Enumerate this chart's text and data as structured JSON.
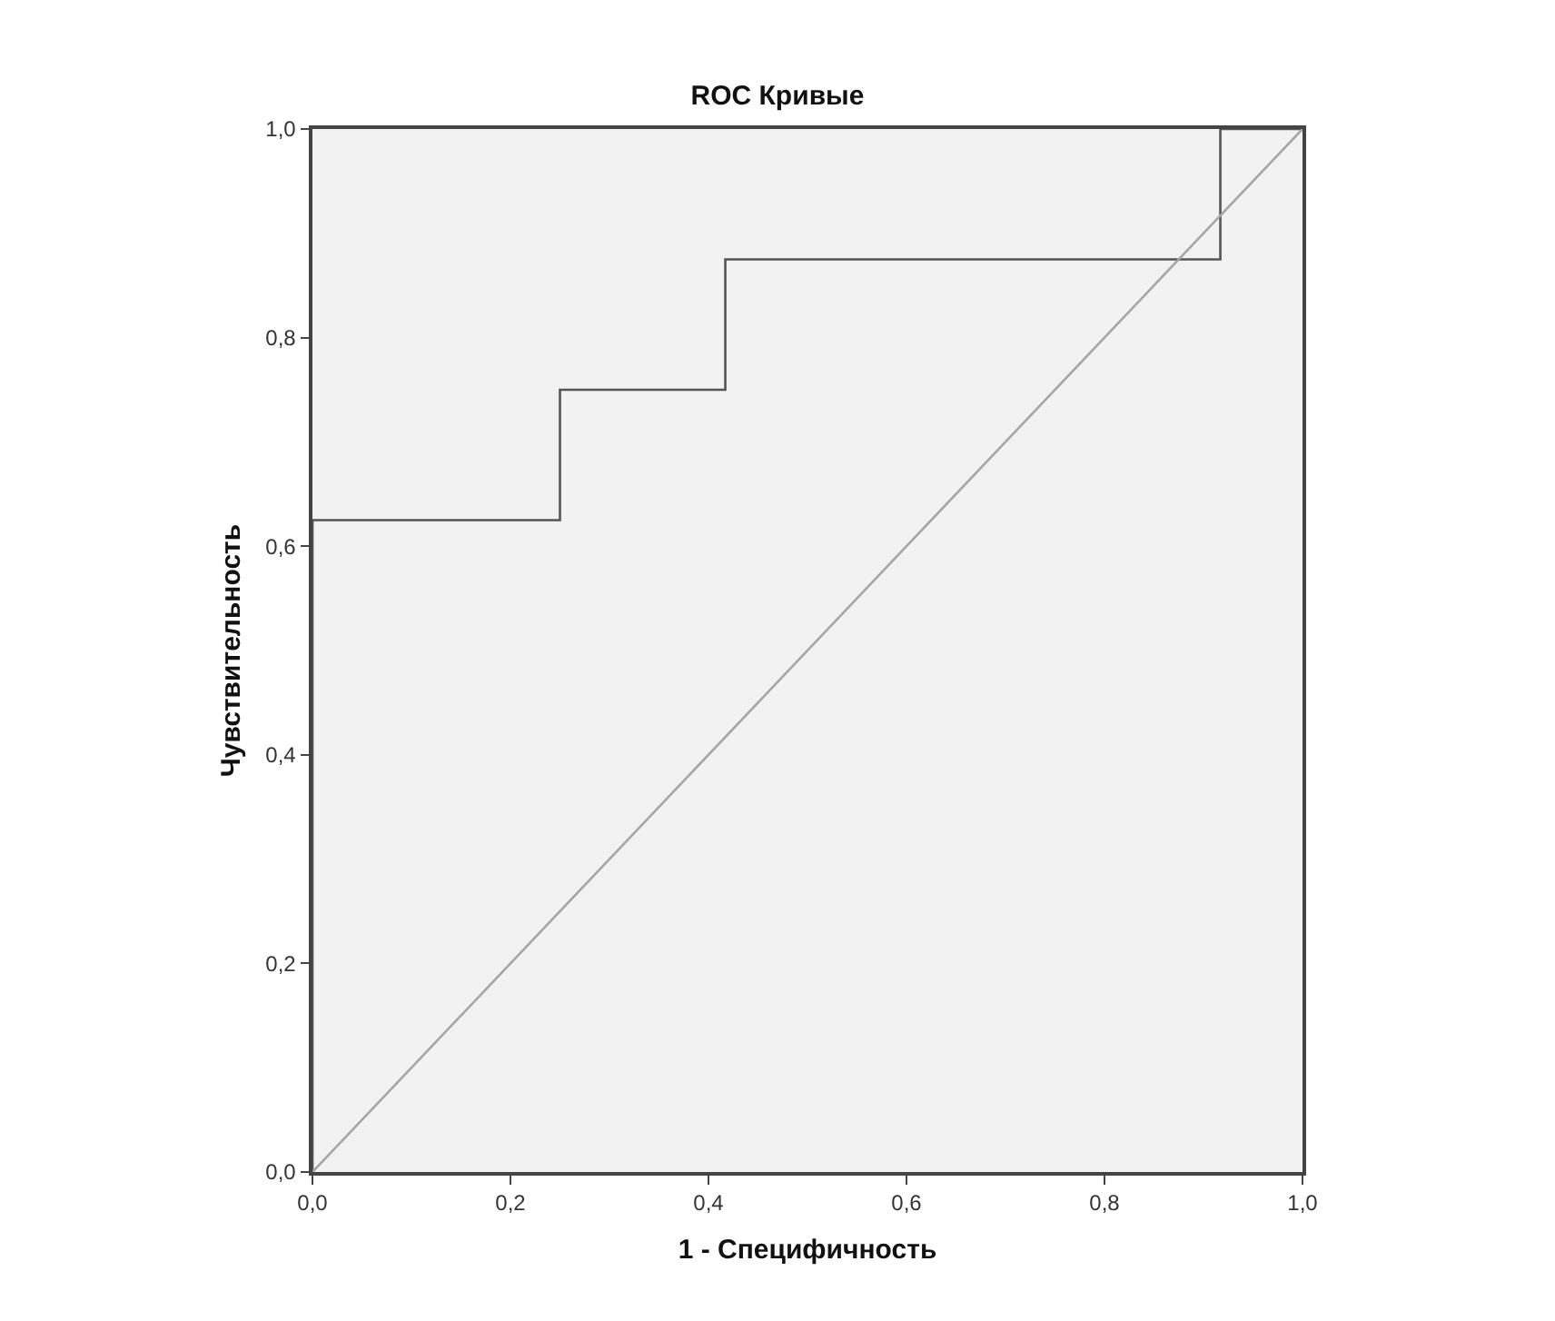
{
  "chart_data": {
    "type": "line",
    "title": "ROC Кривые",
    "xlabel": "1 - Специфичность",
    "ylabel": "Чувствительность",
    "series": [
      {
        "color": "#555555",
        "x": [
          0,
          0,
          0.25,
          0.25,
          0.417,
          0.417,
          0.917,
          0.917,
          1
        ],
        "values": [
          0,
          0.625,
          0.625,
          0.75,
          0.75,
          0.875,
          0.875,
          1,
          1
        ]
      },
      {
        "color": "#a6a6a6",
        "x": [
          0,
          1
        ],
        "values": [
          0,
          1
        ]
      }
    ],
    "xlim": [
      0,
      1
    ],
    "ylim": [
      0,
      1
    ],
    "xticks": [
      {
        "value": 0,
        "label": "0,0"
      },
      {
        "value": 0.2,
        "label": "0,2"
      },
      {
        "value": 0.4,
        "label": "0,4"
      },
      {
        "value": 0.6,
        "label": "0,6"
      },
      {
        "value": 0.8,
        "label": "0,8"
      },
      {
        "value": 1,
        "label": "1,0"
      }
    ],
    "yticks": [
      {
        "value": 0,
        "label": "0,0"
      },
      {
        "value": 0.2,
        "label": "0,2"
      },
      {
        "value": 0.4,
        "label": "0,4"
      },
      {
        "value": 0.6,
        "label": "0,6"
      },
      {
        "value": 0.8,
        "label": "0,8"
      },
      {
        "value": 1,
        "label": "1,0"
      }
    ],
    "grid": false
  }
}
